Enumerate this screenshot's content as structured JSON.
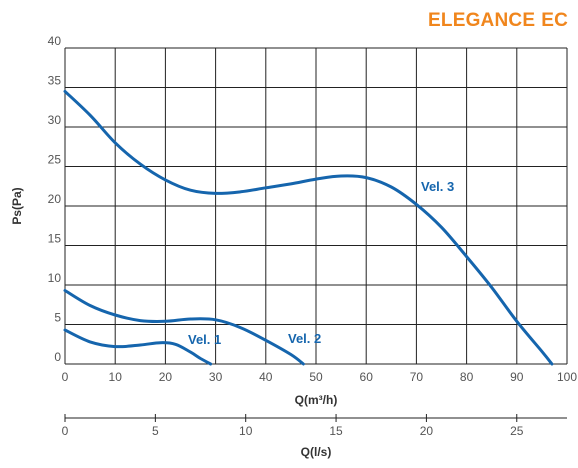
{
  "brand": {
    "title_part1": "ELEGANCE",
    "title_part2": "EC",
    "color": "#f0861d"
  },
  "chart_data": {
    "type": "line",
    "xlabel": "Q(m³/h)",
    "x2label": "Q(l/s)",
    "ylabel": "Ps(Pa)",
    "xlim": [
      0,
      100
    ],
    "ylim": [
      0,
      40
    ],
    "x2lim": [
      0,
      27.78
    ],
    "x_ticks": [
      "0",
      "10",
      "20",
      "30",
      "40",
      "50",
      "60",
      "70",
      "80",
      "90",
      "100"
    ],
    "y_ticks": [
      "0",
      "5",
      "10",
      "15",
      "20",
      "25",
      "30",
      "35",
      "40"
    ],
    "x2_ticks": [
      "0",
      "5",
      "10",
      "15",
      "20",
      "25"
    ],
    "grid": true,
    "line_color": "#1565ad",
    "series": [
      {
        "name": "Vel. 3",
        "x": [
          0,
          5,
          10,
          15,
          20,
          25,
          30,
          35,
          40,
          45,
          50,
          55,
          60,
          65,
          70,
          75,
          80,
          85,
          90,
          95,
          97
        ],
        "y": [
          34.5,
          31.5,
          28,
          25.3,
          23.3,
          22,
          21.6,
          21.8,
          22.3,
          22.8,
          23.4,
          23.8,
          23.6,
          22.4,
          20.2,
          17.3,
          13.6,
          9.7,
          5.4,
          1.6,
          0
        ]
      },
      {
        "name": "Vel. 2",
        "x": [
          0,
          5,
          10,
          15,
          20,
          25,
          30,
          35,
          40,
          45,
          47.5
        ],
        "y": [
          9.3,
          7.4,
          6.2,
          5.5,
          5.4,
          5.7,
          5.6,
          4.6,
          3,
          1.2,
          0
        ]
      },
      {
        "name": "Vel. 1",
        "x": [
          0,
          5,
          10,
          15,
          19,
          22,
          25,
          27,
          29
        ],
        "y": [
          4.3,
          2.8,
          2.2,
          2.4,
          2.7,
          2.5,
          1.5,
          0.7,
          0
        ]
      }
    ]
  }
}
